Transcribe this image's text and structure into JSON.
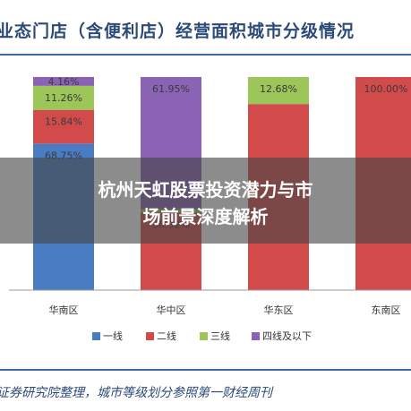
{
  "header": {
    "title": "业态门店（含便利店）经营面积城市分级情况"
  },
  "overlay": {
    "line1": "杭州天虹股票投资潜力与市",
    "line2": "场前景深度解析"
  },
  "footer": {
    "source": "证券研究院整理，城市等级划分参照第一财经周刊"
  },
  "chart_data": {
    "type": "bar",
    "stacked": true,
    "categories": [
      "华南区",
      "华中区",
      "华东区",
      "东南区"
    ],
    "series": [
      {
        "name": "一线",
        "color": "#4a7cc4",
        "values": [
          68.75,
          0,
          0,
          0
        ],
        "labels": [
          "68.75%",
          "",
          "",
          ""
        ]
      },
      {
        "name": "二线",
        "color": "#d24b4b",
        "values": [
          15.84,
          36.32,
          87.32,
          100.0
        ],
        "labels": [
          "15.84%",
          "36.32%",
          "",
          "100.00%"
        ]
      },
      {
        "name": "三线",
        "color": "#9cc55a",
        "values": [
          11.26,
          1.73,
          12.68,
          0
        ],
        "labels": [
          "11.26%",
          "",
          "12.68%",
          ""
        ]
      },
      {
        "name": "四线及以下",
        "color": "#8b63b5",
        "values": [
          4.16,
          61.95,
          0,
          0
        ],
        "labels": [
          "4.16%",
          "61.95%",
          "",
          ""
        ]
      }
    ],
    "ylim": [
      0,
      100
    ],
    "legend": "bottom"
  }
}
